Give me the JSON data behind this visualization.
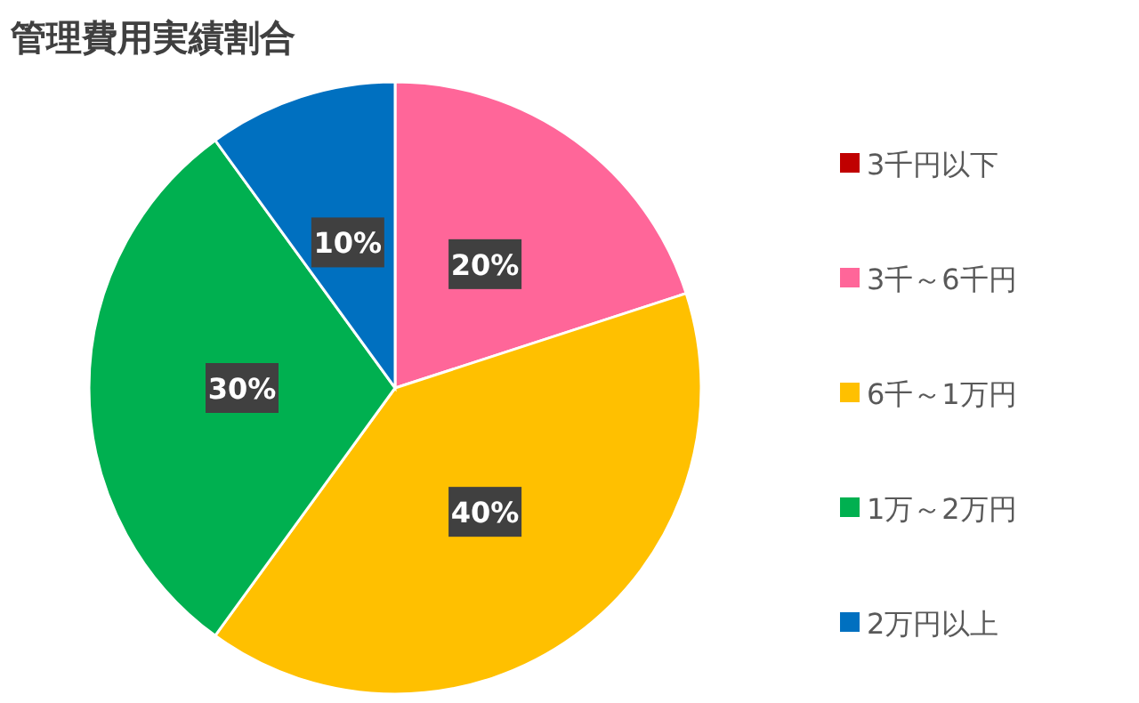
{
  "chart_data": {
    "type": "pie",
    "title": "管理費用実績割合",
    "categories": [
      "3千円以下",
      "3千～6千円",
      "6千～1万円",
      "1万～2万円",
      "2万円以上"
    ],
    "values": [
      0,
      20,
      40,
      30,
      10
    ],
    "colors": [
      "#c00000",
      "#ff6699",
      "#ffc000",
      "#00b050",
      "#0070c0"
    ],
    "value_labels": [
      null,
      "20%",
      "40%",
      "30%",
      "10%"
    ],
    "legend": "right"
  }
}
